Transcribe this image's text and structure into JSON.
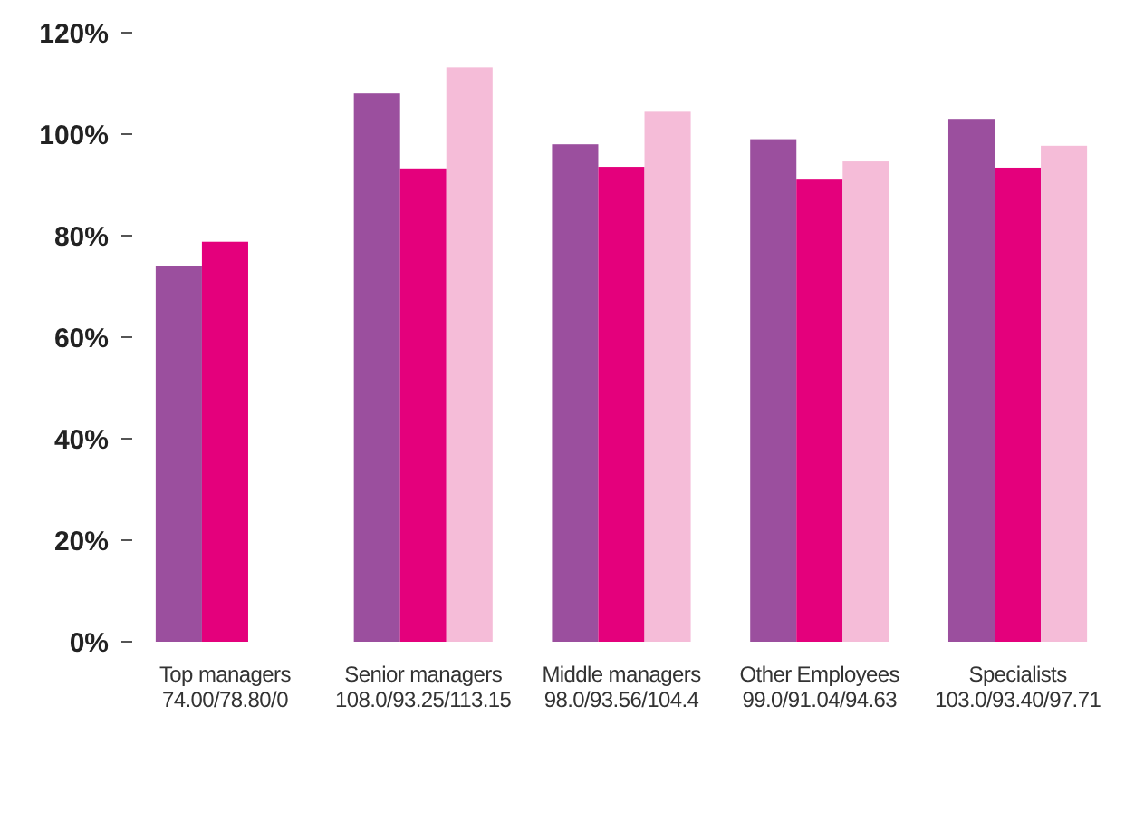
{
  "chart_data": {
    "type": "bar",
    "categories": [
      "Top managers\n74.00/78.80/0",
      "Senior managers\n108.0/93.25/113.15",
      "Middle managers\n98.0/93.56/104.4",
      "Other Employees\n99.0/91.04/94.63",
      "Specialists\n103.0/93.40/97.71"
    ],
    "series": [
      {
        "color": "#9b4f9e",
        "values": [
          74.0,
          108.0,
          98.0,
          99.0,
          103.0
        ]
      },
      {
        "color": "#e4007c",
        "values": [
          78.8,
          93.25,
          93.56,
          91.04,
          93.4
        ]
      },
      {
        "color": "#f5bcd8",
        "values": [
          0,
          113.15,
          104.4,
          94.63,
          97.71
        ]
      }
    ],
    "ylim": [
      0,
      120
    ],
    "yticks": [
      {
        "value": 0,
        "label": "0%"
      },
      {
        "value": 20,
        "label": "20%"
      },
      {
        "value": 40,
        "label": "40%"
      },
      {
        "value": 60,
        "label": "60%"
      },
      {
        "value": 80,
        "label": "80%"
      },
      {
        "value": 100,
        "label": "100%"
      },
      {
        "value": 120,
        "label": "120%"
      }
    ]
  }
}
